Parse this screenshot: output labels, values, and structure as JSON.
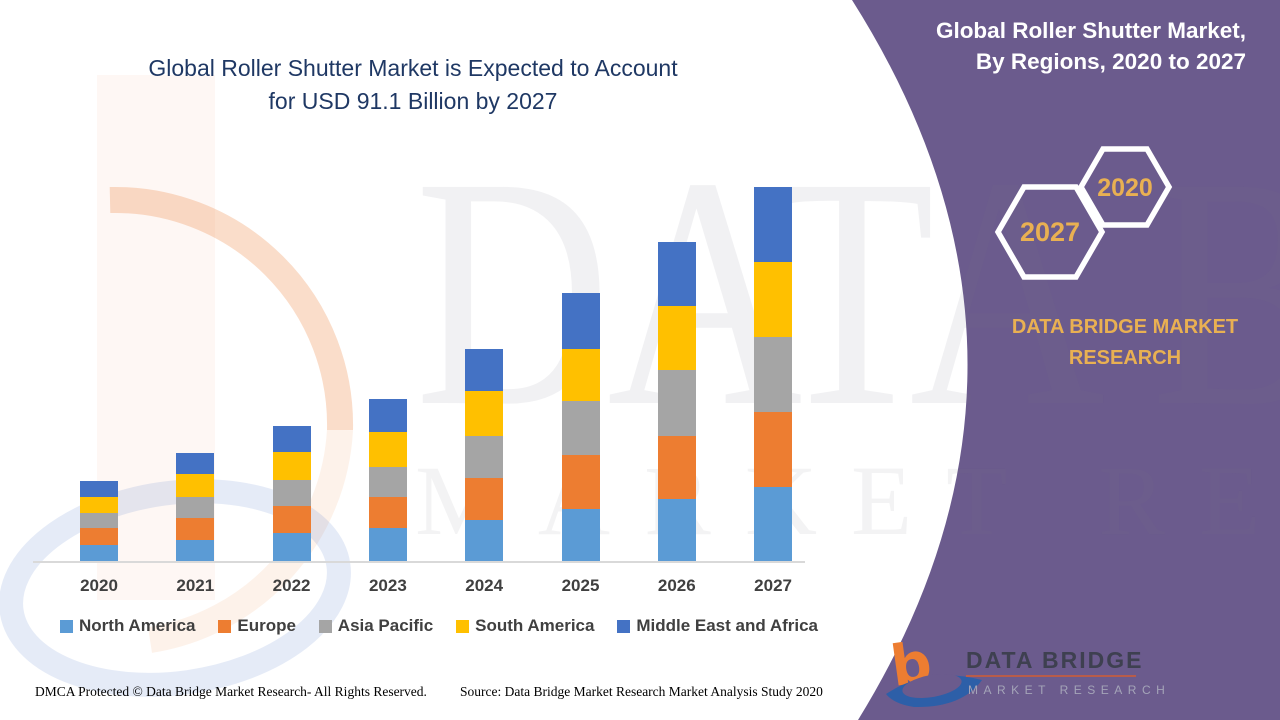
{
  "page_title": "Global Roller Shutter Market infographic",
  "colors": {
    "panel_purple": "#6B5B8D",
    "title_navy": "#1F3864",
    "gold": "#E9B052",
    "axis_text": "#404040",
    "axis_line": "#D9D9D9",
    "logo_orange": "#ED7D31",
    "logo_blue": "#2D5FA8"
  },
  "left": {
    "title_line1": "Global Roller Shutter Market is Expected to Account",
    "title_line2": "for USD 91.1 Billion by 2027"
  },
  "chart_data": {
    "type": "bar",
    "stacked": true,
    "title": "Global Roller Shutter Market is Expected to Account for USD 91.1 Billion by 2027",
    "xlabel": "",
    "ylabel": "",
    "value_unit": "USD Billion",
    "grid": false,
    "y_axis_visible": false,
    "legend_position": "bottom",
    "note": "Segment values estimated from bar heights; 2027 total anchored to USD 91.1 Billion stated in title",
    "categories": [
      "2020",
      "2021",
      "2022",
      "2023",
      "2024",
      "2025",
      "2026",
      "2027"
    ],
    "series": [
      {
        "name": "North America",
        "color": "#5B9BD5",
        "values": [
          3.9,
          5.1,
          6.8,
          8.0,
          9.9,
          12.7,
          15.2,
          18.1
        ]
      },
      {
        "name": "Europe",
        "color": "#ED7D31",
        "values": [
          4.2,
          5.4,
          6.5,
          7.7,
          10.4,
          13.1,
          15.4,
          18.3
        ]
      },
      {
        "name": "Asia Pacific",
        "color": "#A5A5A5",
        "values": [
          3.7,
          5.0,
          6.5,
          7.3,
          10.3,
          13.3,
          16.0,
          18.3
        ]
      },
      {
        "name": "South America",
        "color": "#FFC000",
        "values": [
          3.8,
          5.7,
          6.8,
          8.4,
          10.8,
          12.6,
          15.7,
          18.3
        ]
      },
      {
        "name": "Middle East and Africa",
        "color": "#4472C4",
        "values": [
          3.8,
          5.1,
          6.4,
          8.1,
          10.3,
          13.6,
          15.6,
          18.1
        ]
      }
    ]
  },
  "right_panel": {
    "heading_line1": "Global Roller Shutter Market,",
    "heading_line2": "By Regions, 2020 to 2027",
    "hexagon_start_year": "2020",
    "hexagon_end_year": "2027",
    "brand_line1": "DATA BRIDGE MARKET",
    "brand_line2": "RESEARCH"
  },
  "logo": {
    "letter": "b",
    "name_top": "DATA BRIDGE",
    "name_bottom": "MARKET RESEARCH"
  },
  "watermark": {
    "line1": "DATA BRIDGE",
    "line2": "MARKET RESEARCH"
  },
  "footer": {
    "left": "DMCA Protected © Data Bridge Market Research- All Rights Reserved.",
    "right": "Source: Data Bridge Market Research Market Analysis Study 2020"
  }
}
